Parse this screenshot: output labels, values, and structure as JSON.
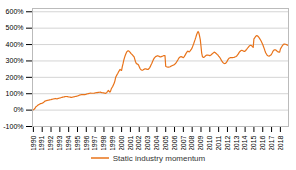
{
  "chart_data": {
    "type": "line",
    "x": [
      1990.0,
      1990.08,
      1990.17,
      1990.25,
      1990.33,
      1990.42,
      1990.5,
      1990.58,
      1990.67,
      1990.75,
      1990.83,
      1990.92,
      1991.0,
      1991.08,
      1991.17,
      1991.25,
      1991.33,
      1991.42,
      1991.5,
      1991.58,
      1991.67,
      1991.75,
      1991.83,
      1991.92,
      1992.0,
      1992.08,
      1992.17,
      1992.25,
      1992.33,
      1992.42,
      1992.5,
      1992.58,
      1992.67,
      1992.75,
      1992.83,
      1992.92,
      1993.0,
      1993.08,
      1993.17,
      1993.25,
      1993.33,
      1993.42,
      1993.5,
      1993.58,
      1993.67,
      1993.75,
      1993.83,
      1993.92,
      1994.0,
      1994.08,
      1994.17,
      1994.25,
      1994.33,
      1994.42,
      1994.5,
      1994.58,
      1994.67,
      1994.75,
      1994.83,
      1994.92,
      1995.0,
      1995.08,
      1995.17,
      1995.25,
      1995.33,
      1995.42,
      1995.5,
      1995.58,
      1995.67,
      1995.75,
      1995.83,
      1995.92,
      1996.0,
      1996.08,
      1996.17,
      1996.25,
      1996.33,
      1996.42,
      1996.5,
      1996.58,
      1996.67,
      1996.75,
      1996.83,
      1996.92,
      1997.0,
      1997.08,
      1997.17,
      1997.25,
      1997.33,
      1997.42,
      1997.5,
      1997.58,
      1997.67,
      1997.75,
      1997.83,
      1997.92,
      1998.0,
      1998.08,
      1998.17,
      1998.25,
      1998.33,
      1998.42,
      1998.5,
      1998.58,
      1998.67,
      1998.75,
      1998.83,
      1998.92,
      1999.0,
      1999.08,
      1999.17,
      1999.25,
      1999.33,
      1999.42,
      1999.5,
      1999.58,
      1999.67,
      1999.75,
      1999.83,
      1999.92,
      2000.0,
      2000.08,
      2000.17,
      2000.25,
      2000.33,
      2000.42,
      2000.5,
      2000.58,
      2000.67,
      2000.75,
      2000.83,
      2000.92,
      2001.0,
      2001.08,
      2001.17,
      2001.25,
      2001.33,
      2001.42,
      2001.5,
      2001.58,
      2001.67,
      2001.75,
      2001.83,
      2001.92,
      2002.0,
      2002.08,
      2002.17,
      2002.25,
      2002.33,
      2002.42,
      2002.5,
      2002.58,
      2002.67,
      2002.75,
      2002.83,
      2002.92,
      2003.0,
      2003.08,
      2003.17,
      2003.25,
      2003.33,
      2003.42,
      2003.5,
      2003.58,
      2003.67,
      2003.75,
      2003.83,
      2003.92,
      2004.0,
      2004.08,
      2004.17,
      2004.25,
      2004.33,
      2004.42,
      2004.5,
      2004.58,
      2004.67,
      2004.75,
      2004.83,
      2004.92,
      2005.0,
      2005.08,
      2005.17,
      2005.25,
      2005.33,
      2005.42,
      2005.5,
      2005.58,
      2005.67,
      2005.75,
      2005.83,
      2005.92,
      2006.0,
      2006.08,
      2006.17,
      2006.25,
      2006.33,
      2006.42,
      2006.5,
      2006.58,
      2006.67,
      2006.75,
      2006.83,
      2006.92,
      2007.0,
      2007.08,
      2007.17,
      2007.25,
      2007.33,
      2007.42,
      2007.5,
      2007.58,
      2007.67,
      2007.75,
      2007.83,
      2007.92,
      2008.0,
      2008.08,
      2008.17,
      2008.25,
      2008.33,
      2008.42,
      2008.5,
      2008.58,
      2008.67,
      2008.75,
      2008.83,
      2008.92,
      2009.0,
      2009.08,
      2009.17,
      2009.25,
      2009.33,
      2009.42,
      2009.5,
      2009.58,
      2009.67,
      2009.75,
      2009.83,
      2009.92,
      2010.0,
      2010.08,
      2010.17,
      2010.25,
      2010.33,
      2010.42,
      2010.5,
      2010.58,
      2010.67,
      2010.75,
      2010.83,
      2010.92,
      2011.0,
      2011.08,
      2011.17,
      2011.25,
      2011.33,
      2011.42,
      2011.5,
      2011.58,
      2011.67,
      2011.75,
      2011.83,
      2011.92,
      2012.0,
      2012.08,
      2012.17,
      2012.25,
      2012.33,
      2012.42,
      2012.5,
      2012.58,
      2012.67,
      2012.75,
      2012.83,
      2012.92,
      2013.0,
      2013.08,
      2013.17,
      2013.25,
      2013.33,
      2013.42,
      2013.5,
      2013.58,
      2013.67,
      2013.75,
      2013.83,
      2013.92,
      2014.0,
      2014.08,
      2014.17,
      2014.25,
      2014.33,
      2014.42,
      2014.5,
      2014.58,
      2014.67,
      2014.75,
      2014.83,
      2014.92,
      2015.0,
      2015.08,
      2015.17,
      2015.25,
      2015.33,
      2015.42,
      2015.5,
      2015.58,
      2015.67,
      2015.75,
      2015.83,
      2015.92,
      2016.0,
      2016.08,
      2016.17,
      2016.25,
      2016.33,
      2016.42,
      2016.5,
      2016.58,
      2016.67,
      2016.75,
      2016.83,
      2016.92,
      2017.0,
      2017.08,
      2017.17,
      2017.25,
      2017.33,
      2017.42,
      2017.5,
      2017.58,
      2017.67,
      2017.75,
      2017.83,
      2017.92,
      2018.0,
      2018.08,
      2018.17,
      2018.25,
      2018.33,
      2018.42,
      2018.5,
      2018.58,
      2018.67,
      2018.75,
      2018.83,
      2018.92
    ],
    "series": [
      {
        "name": "Static industry momentum",
        "color": "#E8731A",
        "values": [
          2,
          5,
          10,
          18,
          22,
          26,
          30,
          33,
          35,
          38,
          40,
          41,
          42,
          44,
          48,
          52,
          55,
          57,
          58,
          59,
          60,
          61,
          62,
          63,
          64,
          66,
          67,
          68,
          69,
          70,
          71,
          70,
          69,
          70,
          72,
          73,
          74,
          75,
          77,
          78,
          79,
          80,
          81,
          82,
          83,
          83,
          82,
          82,
          80,
          80,
          79,
          78,
          78,
          79,
          80,
          81,
          82,
          83,
          84,
          85,
          86,
          88,
          90,
          92,
          93,
          94,
          95,
          95,
          94,
          94,
          95,
          96,
          97,
          99,
          100,
          101,
          102,
          103,
          104,
          103,
          103,
          103,
          103,
          104,
          105,
          106,
          107,
          107,
          108,
          108,
          109,
          110,
          108,
          107,
          106,
          105,
          105,
          103,
          102,
          104,
          108,
          114,
          120,
          115,
          110,
          116,
          130,
          138,
          145,
          155,
          165,
          180,
          200,
          210,
          218,
          225,
          235,
          242,
          248,
          245,
          242,
          265,
          285,
          305,
          320,
          335,
          345,
          355,
          360,
          362,
          360,
          355,
          350,
          345,
          340,
          335,
          330,
          325,
          310,
          295,
          285,
          282,
          280,
          275,
          265,
          255,
          248,
          245,
          243,
          245,
          248,
          250,
          252,
          252,
          250,
          248,
          248,
          252,
          258,
          265,
          275,
          285,
          295,
          305,
          315,
          320,
          325,
          328,
          330,
          332,
          330,
          328,
          325,
          325,
          326,
          328,
          330,
          332,
          332,
          332,
          268,
          265,
          263,
          262,
          262,
          263,
          265,
          268,
          270,
          272,
          274,
          276,
          278,
          283,
          288,
          295,
          302,
          310,
          318,
          322,
          325,
          326,
          325,
          322,
          320,
          325,
          332,
          340,
          348,
          355,
          360,
          358,
          355,
          360,
          366,
          372,
          380,
          392,
          405,
          418,
          430,
          445,
          460,
          470,
          480,
          472,
          455,
          430,
          390,
          348,
          325,
          322,
          322,
          326,
          330,
          334,
          336,
          336,
          335,
          334,
          332,
          335,
          338,
          342,
          346,
          350,
          354,
          352,
          348,
          344,
          340,
          336,
          330,
          325,
          318,
          310,
          302,
          295,
          290,
          286,
          284,
          285,
          288,
          294,
          302,
          310,
          316,
          318,
          320,
          320,
          320,
          320,
          321,
          322,
          324,
          326,
          328,
          332,
          338,
          345,
          352,
          358,
          362,
          364,
          364,
          362,
          360,
          358,
          360,
          365,
          370,
          376,
          382,
          388,
          392,
          395,
          395,
          392,
          388,
          383,
          435,
          440,
          448,
          452,
          455,
          452,
          448,
          442,
          435,
          428,
          420,
          410,
          400,
          388,
          375,
          362,
          350,
          342,
          335,
          332,
          330,
          330,
          333,
          336,
          342,
          350,
          360,
          365,
          368,
          368,
          366,
          362,
          358,
          355,
          354,
          354,
          372,
          380,
          388,
          395,
          400,
          403,
          403,
          402,
          400,
          398,
          396,
          394
        ]
      }
    ],
    "xlim": [
      1989.9,
      2018.92
    ],
    "xticks": [
      1990,
      1991,
      1992,
      1993,
      1994,
      1995,
      1996,
      1997,
      1998,
      1999,
      2000,
      2001,
      2002,
      2003,
      2004,
      2005,
      2006,
      2007,
      2008,
      2009,
      2010,
      2011,
      2012,
      2013,
      2014,
      2015,
      2016,
      2017,
      2018
    ],
    "ylim": [
      -100,
      620
    ],
    "yticks": [
      {
        "value": -100,
        "label": "-100%"
      },
      {
        "value": 0,
        "label": "0%"
      },
      {
        "value": 100,
        "label": "100%"
      },
      {
        "value": 200,
        "label": "200%"
      },
      {
        "value": 300,
        "label": "300%"
      },
      {
        "value": 400,
        "label": "400%"
      },
      {
        "value": 500,
        "label": "500%"
      },
      {
        "value": 600,
        "label": "600%"
      }
    ],
    "grid": "y",
    "legend": "bottom"
  }
}
